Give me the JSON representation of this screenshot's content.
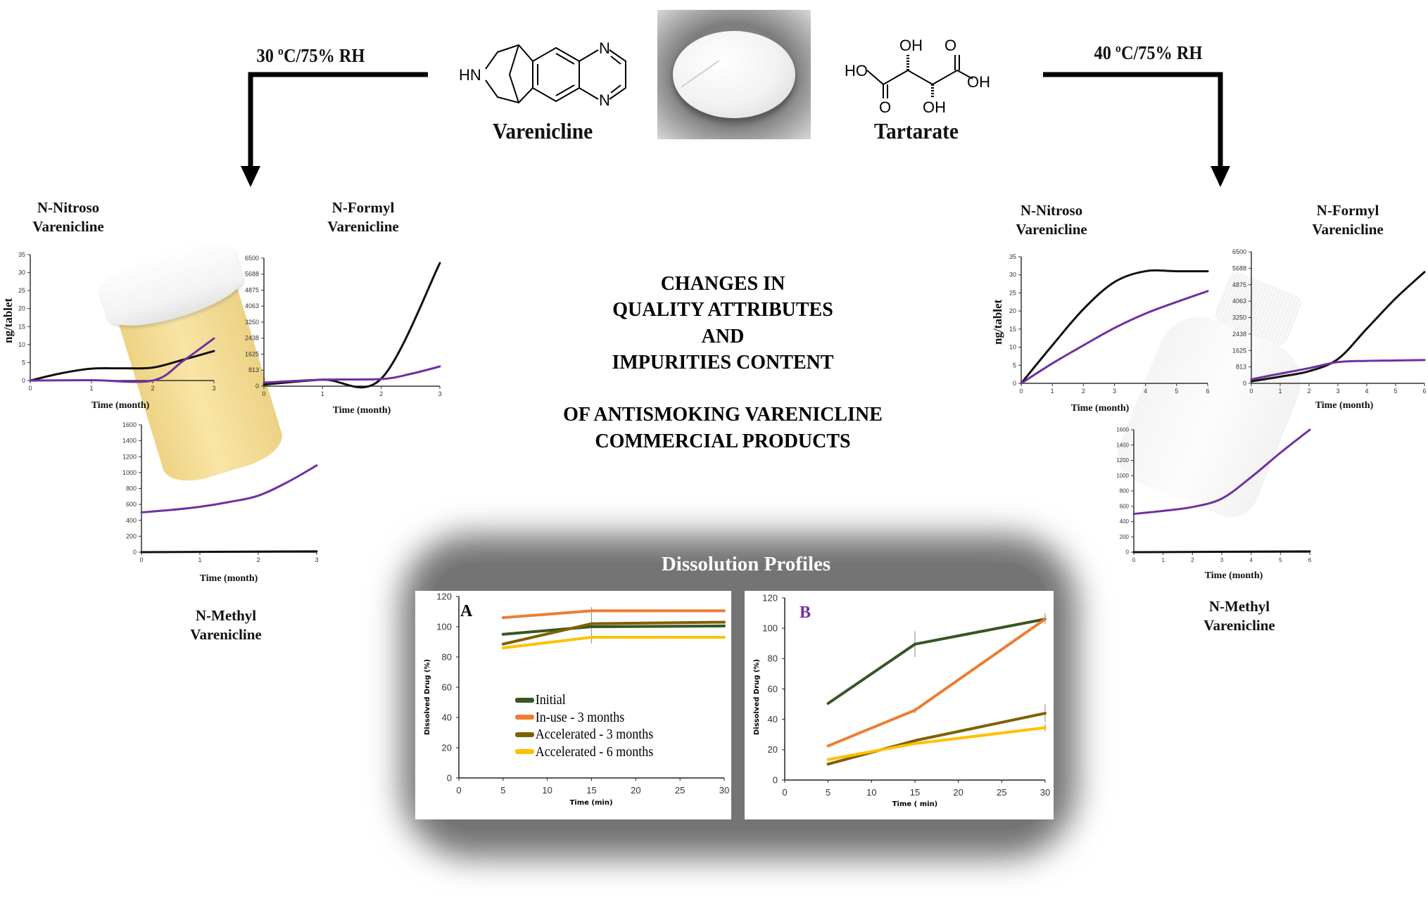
{
  "conditions": {
    "left": "30 ºC/75% RH",
    "right": "40 ºC/75% RH"
  },
  "molecules": {
    "varenicline": {
      "name": "Varenicline",
      "atoms": {
        "hn": "HN",
        "n1": "N",
        "n2": "N"
      }
    },
    "tartarate": {
      "name": "Tartarate",
      "atoms": {
        "oh_top": "OH",
        "o_top": "O",
        "ho_left": "HO",
        "oh_right": "OH",
        "o_bottom": "O",
        "oh_bottom": "OH"
      }
    }
  },
  "impurity_labels": {
    "left_nitroso": [
      "N-Nitroso",
      "Varenicline"
    ],
    "left_formyl": [
      "N-Formyl",
      "Varenicline"
    ],
    "left_methyl": [
      "N-Methyl",
      "Varenicline"
    ],
    "right_nitroso": [
      "N-Nitroso",
      "Varenicline"
    ],
    "right_formyl": [
      "N-Formyl",
      "Varenicline"
    ],
    "right_methyl": [
      "N-Methyl",
      "Varenicline"
    ]
  },
  "axis_text": {
    "y_unit": "ng/tablet",
    "time_month": "Time (month)"
  },
  "center_title": [
    "CHANGES IN",
    "QUALITY ATTRIBUTES",
    "AND",
    "IMPURITIES CONTENT",
    "OF ANTISMOKING VARENICLINE",
    "COMMERCIAL PRODUCTS"
  ],
  "dissolution": {
    "title": "Dissolution Profiles",
    "panel_a": "A",
    "panel_b": "B",
    "ylabel": "Dissolved Drug (%)",
    "xlabel_a": "Time (min)",
    "xlabel_b": "Time ( min)",
    "legend": [
      "Initial",
      "In-use - 3 months",
      "Accelerated - 3 months",
      "Accelerated - 6 months"
    ]
  },
  "colors": {
    "black": "#111111",
    "purple": "#7030a0",
    "initial": "#375623",
    "in_use": "#ed7d31",
    "acc3": "#7f6000",
    "acc6": "#ffc000",
    "panel_b_letter": "#7030a0"
  },
  "chart_data": [
    {
      "id": "left_nitroso",
      "type": "line",
      "xlabel": "Time (month)",
      "ylabel": "ng/tablet",
      "xlim": [
        0,
        3
      ],
      "ylim": [
        0,
        35
      ],
      "xticks": [
        0,
        1,
        2,
        3
      ],
      "yticks": [
        0,
        5,
        10,
        15,
        20,
        25,
        30,
        35
      ],
      "series": [
        {
          "name": "black",
          "x": [
            0,
            0.5,
            1,
            1.5,
            2,
            2.5,
            3
          ],
          "y": [
            0,
            2,
            3.3,
            3.4,
            3.6,
            5.8,
            8.2
          ]
        },
        {
          "name": "purple",
          "x": [
            0,
            1,
            2,
            2.5,
            3
          ],
          "y": [
            0,
            0.1,
            0,
            5.5,
            11.7
          ]
        }
      ]
    },
    {
      "id": "left_formyl",
      "type": "line",
      "xlabel": "Time (month)",
      "xlim": [
        0,
        3
      ],
      "ylim": [
        0,
        6500
      ],
      "xticks": [
        0,
        1,
        2,
        3
      ],
      "yticks": [
        0,
        813,
        1625,
        2438,
        3250,
        4063,
        4875,
        5688,
        6500
      ],
      "series": [
        {
          "name": "black",
          "x": [
            0,
            1,
            2,
            3
          ],
          "y": [
            80,
            330,
            380,
            6250
          ]
        },
        {
          "name": "purple",
          "x": [
            0,
            1,
            2,
            2.5,
            3
          ],
          "y": [
            180,
            330,
            360,
            620,
            1000
          ]
        }
      ]
    },
    {
      "id": "left_methyl",
      "type": "line",
      "xlabel": "Time (month)",
      "xlim": [
        0,
        3
      ],
      "ylim": [
        0,
        1600
      ],
      "xticks": [
        0,
        1,
        2,
        3
      ],
      "yticks": [
        0,
        200,
        400,
        600,
        800,
        1000,
        1200,
        1400,
        1600
      ],
      "series": [
        {
          "name": "purple",
          "x": [
            0,
            0.5,
            1,
            1.5,
            2,
            2.5,
            3
          ],
          "y": [
            500,
            530,
            570,
            630,
            710,
            880,
            1090
          ]
        },
        {
          "name": "black",
          "x": [
            0,
            3
          ],
          "y": [
            0,
            10
          ]
        }
      ]
    },
    {
      "id": "right_nitroso",
      "type": "line",
      "xlabel": "Time (month)",
      "ylabel": "ng/tablet",
      "xlim": [
        0,
        6
      ],
      "ylim": [
        0,
        35
      ],
      "xticks": [
        0,
        1,
        2,
        3,
        4,
        5,
        6
      ],
      "yticks": [
        0,
        5,
        10,
        15,
        20,
        25,
        30,
        35
      ],
      "series": [
        {
          "name": "black",
          "x": [
            0,
            1,
            2,
            3,
            4,
            5,
            6
          ],
          "y": [
            0,
            10.5,
            20.5,
            28,
            31,
            31,
            31
          ]
        },
        {
          "name": "purple",
          "x": [
            0,
            1,
            2,
            3,
            4,
            5,
            6
          ],
          "y": [
            0,
            5.5,
            10.5,
            15.3,
            19.3,
            22.5,
            25.5
          ]
        }
      ]
    },
    {
      "id": "right_formyl",
      "type": "line",
      "xlabel": "Time (month)",
      "xlim": [
        0,
        6
      ],
      "ylim": [
        0,
        6500
      ],
      "xticks": [
        0,
        1,
        2,
        3,
        4,
        5,
        6
      ],
      "yticks": [
        0,
        813,
        1625,
        2438,
        3250,
        4063,
        4875,
        5688,
        6500
      ],
      "series": [
        {
          "name": "black",
          "x": [
            0,
            1,
            2,
            3,
            4,
            5,
            6
          ],
          "y": [
            100,
            330,
            600,
            1200,
            2700,
            4200,
            5500
          ]
        },
        {
          "name": "purple",
          "x": [
            0,
            1,
            2,
            3,
            4,
            5,
            6
          ],
          "y": [
            200,
            480,
            750,
            1050,
            1110,
            1130,
            1150
          ]
        }
      ]
    },
    {
      "id": "right_methyl",
      "type": "line",
      "xlabel": "Time (month)",
      "xlim": [
        0,
        6
      ],
      "ylim": [
        0,
        1600
      ],
      "xticks": [
        0,
        1,
        2,
        3,
        4,
        5,
        6
      ],
      "yticks": [
        0,
        200,
        400,
        600,
        800,
        1000,
        1200,
        1400,
        1600
      ],
      "series": [
        {
          "name": "purple",
          "x": [
            0,
            1,
            2,
            3,
            4,
            5,
            6
          ],
          "y": [
            500,
            540,
            590,
            700,
            980,
            1300,
            1600
          ]
        },
        {
          "name": "black",
          "x": [
            0,
            6
          ],
          "y": [
            0,
            10
          ]
        }
      ]
    },
    {
      "id": "dissolution_a",
      "type": "line",
      "title": "A",
      "xlabel": "Time (min)",
      "ylabel": "Dissolved Drug (%)",
      "xlim": [
        0,
        30
      ],
      "ylim": [
        0,
        120
      ],
      "xticks": [
        0,
        5,
        10,
        15,
        20,
        25,
        30
      ],
      "yticks": [
        0,
        20,
        40,
        60,
        80,
        100,
        120
      ],
      "legend": "center-left",
      "series": [
        {
          "name": "Initial",
          "x": [
            5,
            15,
            30
          ],
          "y": [
            95,
            100,
            100.5
          ]
        },
        {
          "name": "In-use - 3 months",
          "x": [
            5,
            15,
            30
          ],
          "y": [
            106,
            110.5,
            110.5
          ]
        },
        {
          "name": "Accelerated - 3 months",
          "x": [
            5,
            15,
            30
          ],
          "y": [
            88.5,
            102,
            103
          ]
        },
        {
          "name": "Accelerated - 6 months",
          "x": [
            5,
            15,
            30
          ],
          "y": [
            86,
            93,
            93
          ]
        }
      ],
      "error_bars": [
        {
          "x": 15,
          "low": 89,
          "high": 113
        }
      ]
    },
    {
      "id": "dissolution_b",
      "type": "line",
      "title": "B",
      "xlabel": "Time ( min)",
      "ylabel": "Dissolved Drug (%)",
      "xlim": [
        0,
        30
      ],
      "ylim": [
        0,
        120
      ],
      "xticks": [
        0,
        5,
        10,
        15,
        20,
        25,
        30
      ],
      "yticks": [
        0,
        20,
        40,
        60,
        80,
        100,
        120
      ],
      "series": [
        {
          "name": "Initial",
          "x": [
            5,
            15,
            30
          ],
          "y": [
            50.5,
            89.5,
            106
          ]
        },
        {
          "name": "In-use - 3 months",
          "x": [
            5,
            15,
            30
          ],
          "y": [
            22.5,
            46,
            106
          ]
        },
        {
          "name": "Accelerated - 3 months",
          "x": [
            5,
            15,
            30
          ],
          "y": [
            10.5,
            26,
            44
          ]
        },
        {
          "name": "Accelerated - 6 months",
          "x": [
            5,
            15,
            30
          ],
          "y": [
            13.5,
            24,
            34.5
          ]
        }
      ],
      "error_bars": [
        {
          "x": 15,
          "low": 81,
          "high": 98
        },
        {
          "x": 15,
          "low": 44,
          "high": 48
        },
        {
          "x": 30,
          "low": 103,
          "high": 110
        },
        {
          "x": 30,
          "low": 38,
          "high": 50
        },
        {
          "x": 30,
          "low": 32,
          "high": 37
        }
      ]
    }
  ]
}
